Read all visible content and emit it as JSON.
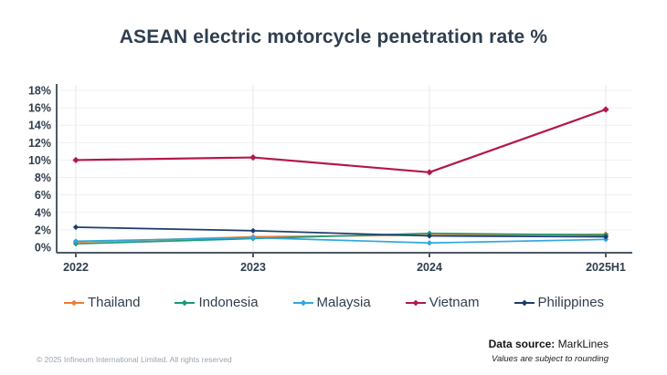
{
  "chart_data": {
    "type": "line",
    "title": "ASEAN electric motorcycle penetration rate %",
    "categories": [
      "2022",
      "2023",
      "2024",
      "2025H1"
    ],
    "series": [
      {
        "name": "Thailand",
        "color": "#ef7d33",
        "values": [
          0.6,
          1.2,
          1.4,
          1.5
        ]
      },
      {
        "name": "Indonesia",
        "color": "#189a78",
        "values": [
          0.4,
          1.0,
          1.6,
          1.4
        ]
      },
      {
        "name": "Malaysia",
        "color": "#2fa7e0",
        "values": [
          0.7,
          1.1,
          0.5,
          0.9
        ]
      },
      {
        "name": "Vietnam",
        "color": "#b3174e",
        "values": [
          10.0,
          10.3,
          8.6,
          15.8
        ]
      },
      {
        "name": "Philippines",
        "color": "#1e3c6e",
        "values": [
          2.3,
          1.9,
          1.3,
          1.2
        ]
      }
    ],
    "xlabel": "",
    "ylabel": "",
    "ylim": [
      0,
      18
    ],
    "ytick_step": 2,
    "ytick_suffix": "%",
    "grid": true,
    "legend_position": "bottom",
    "axis_color": "#4d5a66",
    "label_color": "#2f3e4e"
  },
  "footer": {
    "copyright": "© 2025 Infineum International Limited. All rights reserved",
    "source_label": "Data source:",
    "source_value": " MarkLines",
    "note": "Values are subject to rounding"
  }
}
